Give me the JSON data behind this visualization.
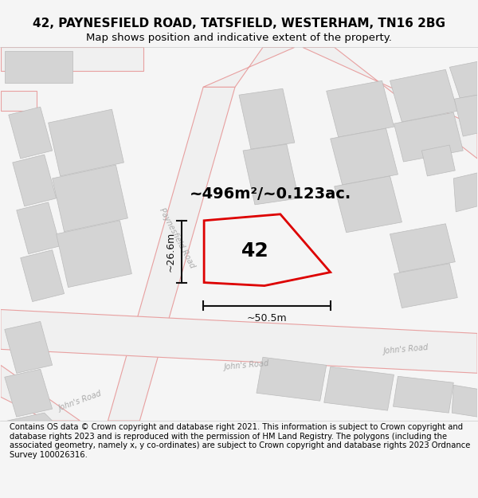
{
  "title": "42, PAYNESFIELD ROAD, TATSFIELD, WESTERHAM, TN16 2BG",
  "subtitle": "Map shows position and indicative extent of the property.",
  "area_label": "~496m²/~0.123ac.",
  "plot_number": "42",
  "width_label": "~50.5m",
  "height_label": "~26.6m",
  "footer": "Contains OS data © Crown copyright and database right 2021. This information is subject to Crown copyright and database rights 2023 and is reproduced with the permission of HM Land Registry. The polygons (including the associated geometry, namely x, y co-ordinates) are subject to Crown copyright and database rights 2023 Ordnance Survey 100026316.",
  "bg_color": "#f5f5f5",
  "map_bg": "#ffffff",
  "plot_color": "#dd0000",
  "bldg_fill": "#d4d4d4",
  "bldg_edge": "#bbbbbb",
  "road_fill": "#f0f0f0",
  "road_edge": "#e8a0a0",
  "road_label_color": "#aaaaaa",
  "dim_color": "#111111",
  "title_fs": 11,
  "subtitle_fs": 9.5,
  "footer_fs": 7.2,
  "area_fs": 14,
  "plot_num_fs": 18,
  "dim_fs": 9
}
